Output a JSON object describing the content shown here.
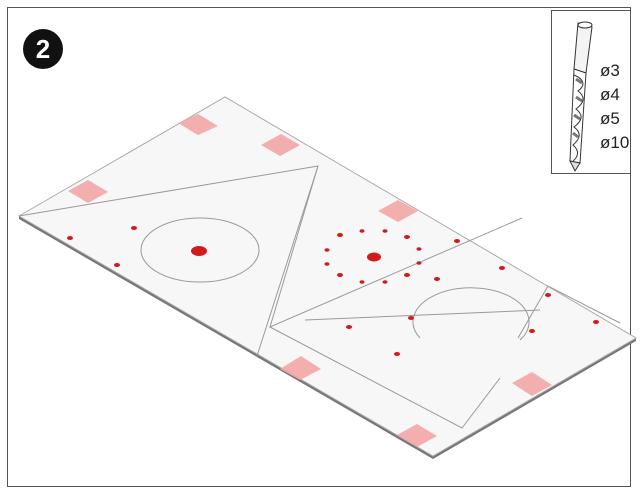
{
  "step": {
    "number": "2"
  },
  "drill_legend": {
    "icon": "drill-bit-icon",
    "sizes": [
      "ø3",
      "ø4",
      "ø5",
      "ø10"
    ]
  },
  "colors": {
    "hole": "#d11a1a",
    "tape": "#f2a5a5",
    "sheet": "#f7f7f7",
    "outline": "#999999"
  }
}
